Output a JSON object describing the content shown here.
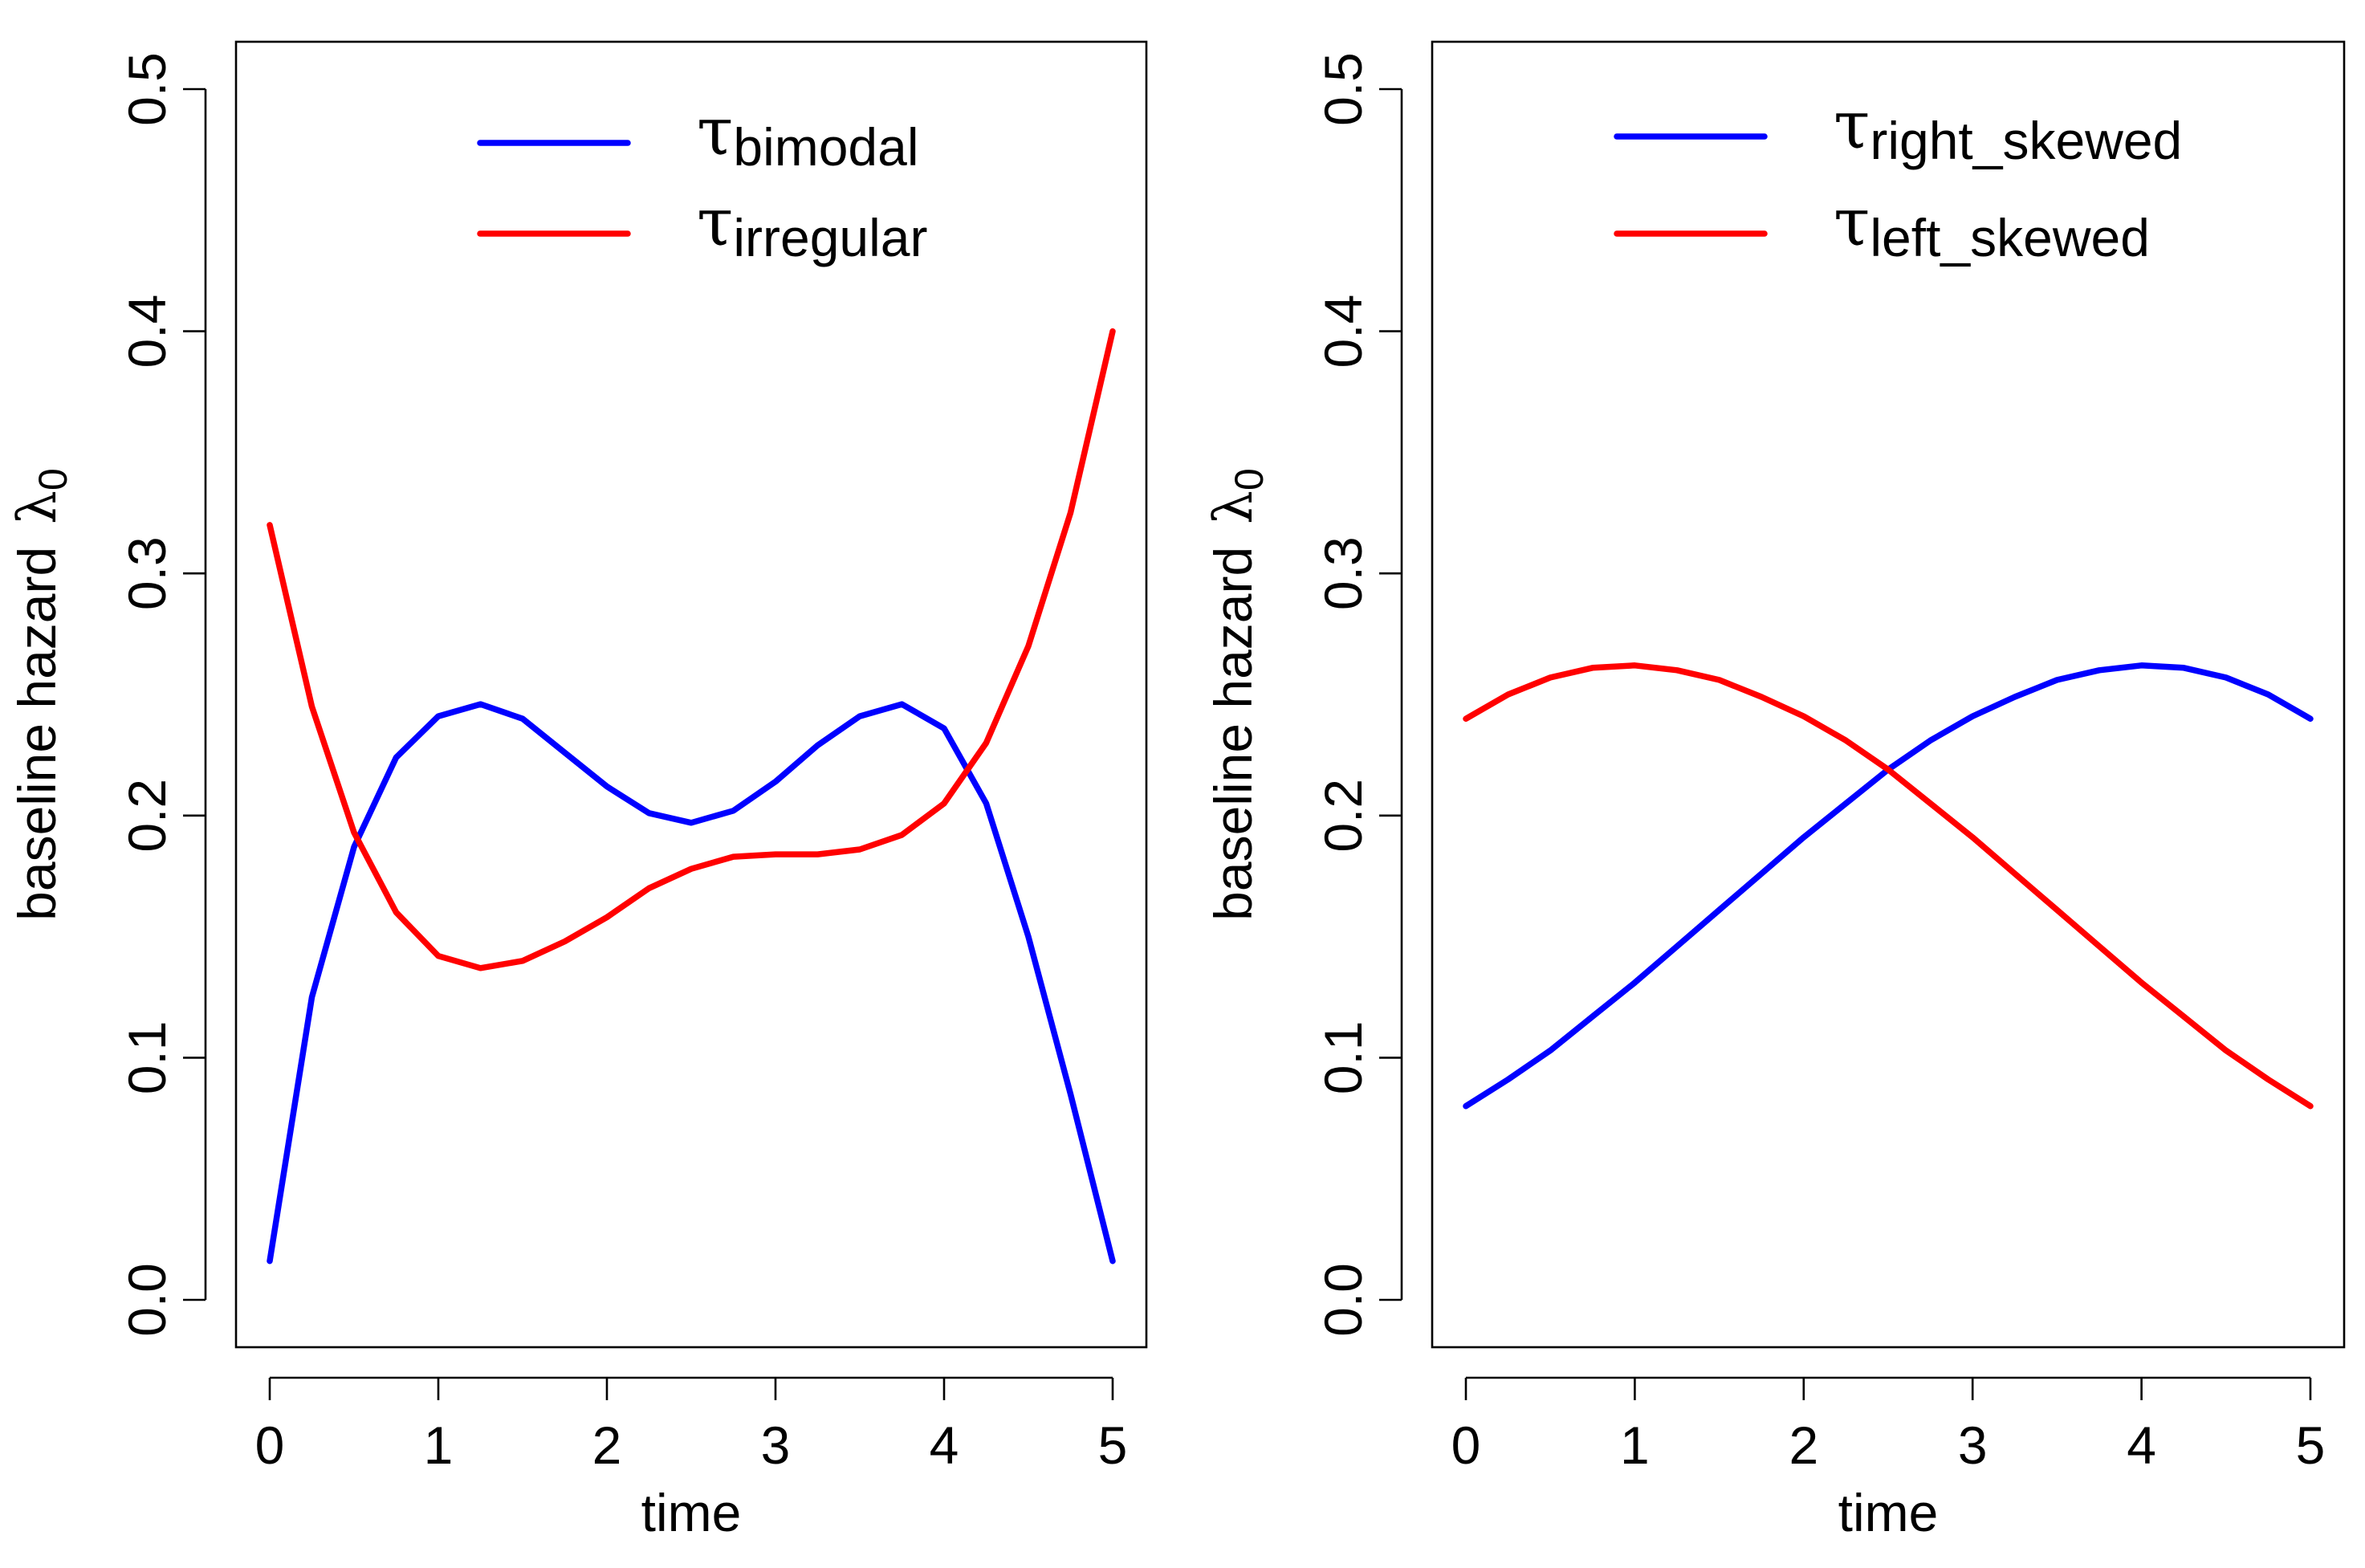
{
  "chart_data": [
    {
      "type": "line",
      "title": "",
      "xlabel": "time",
      "ylabel": "baseline hazard",
      "ylabel_symbol": "λ",
      "ylabel_subscript": "0",
      "xlim": [
        0,
        5
      ],
      "ylim": [
        0,
        0.5
      ],
      "x_ticks": [
        0,
        1,
        2,
        3,
        4,
        5
      ],
      "x_tick_labels": [
        "0",
        "1",
        "2",
        "3",
        "4",
        "5"
      ],
      "y_ticks": [
        0,
        0.1,
        0.2,
        0.3,
        0.4,
        0.5
      ],
      "y_tick_labels": [
        "0.0",
        "0.1",
        "0.2",
        "0.3",
        "0.4",
        "0.5"
      ],
      "legend_position": "top-right",
      "series": [
        {
          "name": "τbimodal",
          "symbol": "τ",
          "subscript": "bimodal",
          "color": "#0000FF",
          "x": [
            0,
            0.25,
            0.5,
            0.75,
            1.0,
            1.25,
            1.5,
            1.75,
            2.0,
            2.25,
            2.5,
            2.75,
            3.0,
            3.25,
            3.5,
            3.75,
            4.0,
            4.25,
            4.5,
            4.75,
            5.0
          ],
          "y": [
            0.016,
            0.125,
            0.187,
            0.224,
            0.241,
            0.246,
            0.24,
            0.226,
            0.212,
            0.201,
            0.197,
            0.202,
            0.214,
            0.229,
            0.241,
            0.246,
            0.236,
            0.205,
            0.15,
            0.085,
            0.016
          ]
        },
        {
          "name": "τirregular",
          "symbol": "τ",
          "subscript": "irregular",
          "color": "#FF0000",
          "x": [
            0,
            0.25,
            0.5,
            0.75,
            1.0,
            1.25,
            1.5,
            1.75,
            2.0,
            2.25,
            2.5,
            2.75,
            3.0,
            3.25,
            3.5,
            3.75,
            4.0,
            4.25,
            4.5,
            4.75,
            5.0
          ],
          "y": [
            0.32,
            0.245,
            0.193,
            0.16,
            0.142,
            0.137,
            0.14,
            0.148,
            0.158,
            0.17,
            0.178,
            0.183,
            0.184,
            0.184,
            0.186,
            0.192,
            0.205,
            0.23,
            0.27,
            0.325,
            0.4
          ]
        }
      ]
    },
    {
      "type": "line",
      "title": "",
      "xlabel": "time",
      "ylabel": "baseline hazard",
      "ylabel_symbol": "λ",
      "ylabel_subscript": "0",
      "xlim": [
        0,
        5
      ],
      "ylim": [
        0,
        0.5
      ],
      "x_ticks": [
        0,
        1,
        2,
        3,
        4,
        5
      ],
      "x_tick_labels": [
        "0",
        "1",
        "2",
        "3",
        "4",
        "5"
      ],
      "y_ticks": [
        0,
        0.1,
        0.2,
        0.3,
        0.4,
        0.5
      ],
      "y_tick_labels": [
        "0.0",
        "0.1",
        "0.2",
        "0.3",
        "0.4",
        "0.5"
      ],
      "legend_position": "top-right",
      "series": [
        {
          "name": "τright_skewed",
          "symbol": "τ",
          "subscript": "right_skewed",
          "color": "#0000FF",
          "x": [
            0,
            0.25,
            0.5,
            0.75,
            1.0,
            1.25,
            1.5,
            1.75,
            2.0,
            2.25,
            2.5,
            2.75,
            3.0,
            3.25,
            3.5,
            3.75,
            4.0,
            4.25,
            4.5,
            4.75,
            5.0
          ],
          "y": [
            0.08,
            0.091,
            0.103,
            0.117,
            0.131,
            0.146,
            0.161,
            0.176,
            0.191,
            0.205,
            0.219,
            0.231,
            0.241,
            0.249,
            0.256,
            0.26,
            0.262,
            0.261,
            0.257,
            0.25,
            0.24
          ]
        },
        {
          "name": "τleft_skewed",
          "symbol": "τ",
          "subscript": "left_skewed",
          "color": "#FF0000",
          "x": [
            0,
            0.25,
            0.5,
            0.75,
            1.0,
            1.25,
            1.5,
            1.75,
            2.0,
            2.25,
            2.5,
            2.75,
            3.0,
            3.25,
            3.5,
            3.75,
            4.0,
            4.25,
            4.5,
            4.75,
            5.0
          ],
          "y": [
            0.24,
            0.25,
            0.257,
            0.261,
            0.262,
            0.26,
            0.256,
            0.249,
            0.241,
            0.231,
            0.219,
            0.205,
            0.191,
            0.176,
            0.161,
            0.146,
            0.131,
            0.117,
            0.103,
            0.091,
            0.08
          ]
        }
      ]
    }
  ]
}
